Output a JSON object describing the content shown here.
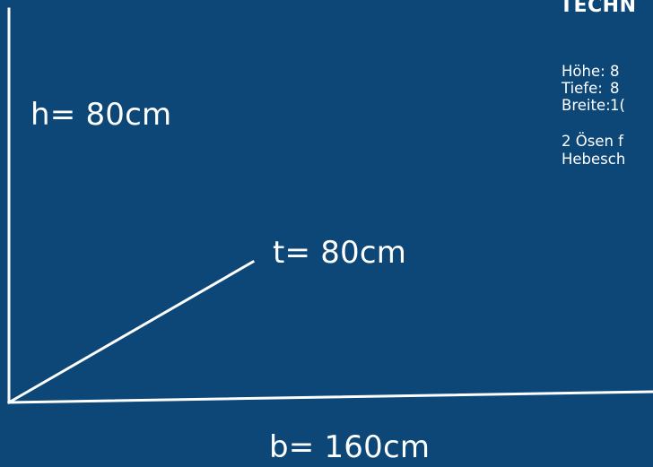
{
  "dimensions": {
    "height_label": "h= 80cm",
    "depth_label": "t= 80cm",
    "width_label": "b= 160cm"
  },
  "specs": {
    "title": "TECHN",
    "rows": [
      {
        "key": "Höhe:",
        "value": "8"
      },
      {
        "key": "Tiefe:",
        "value": "8"
      },
      {
        "key": "Breite:",
        "value": "1("
      }
    ],
    "note_lines": [
      "2 Ösen f",
      "Hebesch"
    ]
  },
  "colors": {
    "background": "#0c4778",
    "foreground": "#ffffff"
  }
}
